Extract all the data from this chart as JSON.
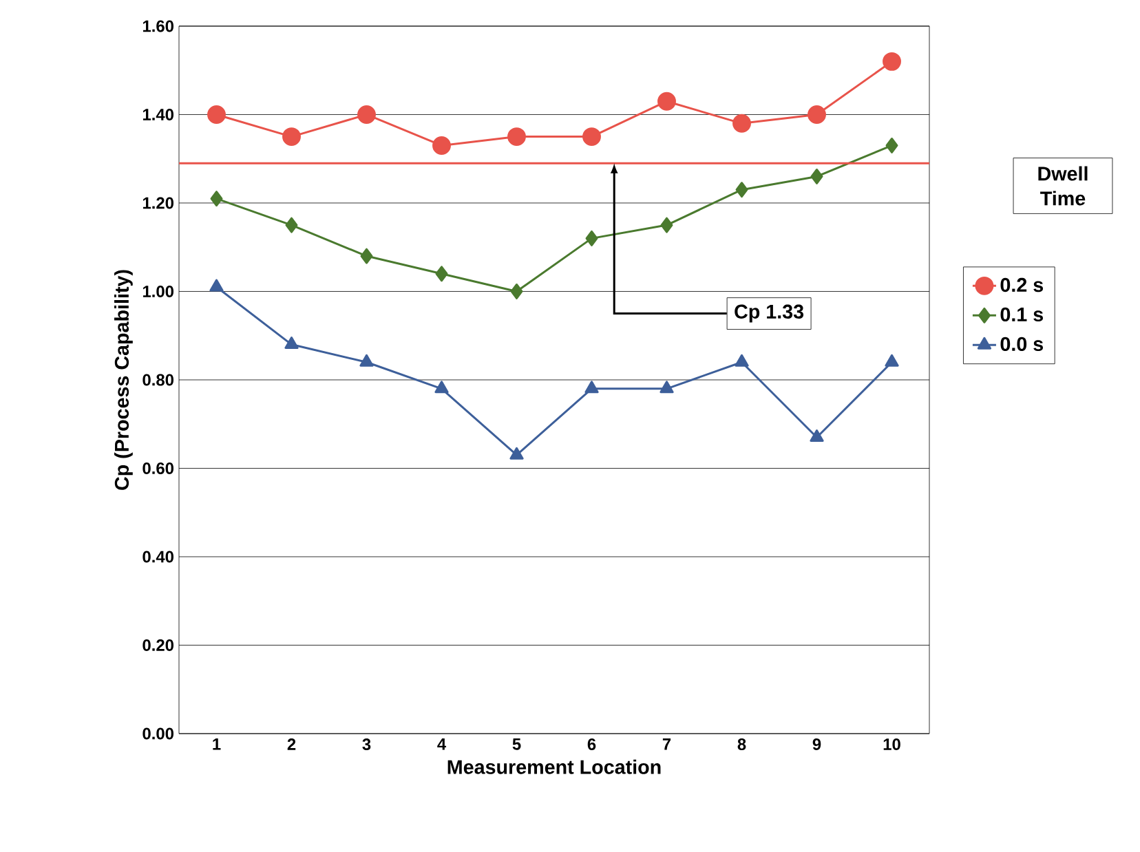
{
  "chart_data": {
    "type": "line",
    "xlabel": "Measurement Location",
    "ylabel": "Cp (Process Capability)",
    "legend_title": "Dwell Time",
    "categories": [
      "1",
      "2",
      "3",
      "4",
      "5",
      "6",
      "7",
      "8",
      "9",
      "10"
    ],
    "series": [
      {
        "name": "0.2 s",
        "color": "#e8534a",
        "marker": "circle",
        "values": [
          1.4,
          1.35,
          1.4,
          1.33,
          1.35,
          1.35,
          1.43,
          1.38,
          1.4,
          1.52
        ]
      },
      {
        "name": "0.1 s",
        "color": "#4a7a2e",
        "marker": "diamond",
        "values": [
          1.21,
          1.15,
          1.08,
          1.04,
          1.0,
          1.12,
          1.15,
          1.23,
          1.26,
          1.33
        ]
      },
      {
        "name": "0.0 s",
        "color": "#3d5f9a",
        "marker": "triangle",
        "values": [
          1.01,
          0.88,
          0.84,
          0.78,
          0.63,
          0.78,
          0.78,
          0.84,
          0.67,
          0.84
        ]
      }
    ],
    "ylim": [
      0,
      1.6
    ],
    "yticks": [
      {
        "value": 0,
        "label": "0.00"
      },
      {
        "value": 0.2,
        "label": "0.20"
      },
      {
        "value": 0.4,
        "label": "0.40"
      },
      {
        "value": 0.6,
        "label": "0.60"
      },
      {
        "value": 0.8,
        "label": "0.80"
      },
      {
        "value": 1.0,
        "label": "1.00"
      },
      {
        "value": 1.2,
        "label": "1.20"
      },
      {
        "value": 1.4,
        "label": "1.40"
      },
      {
        "value": 1.6,
        "label": "1.60"
      }
    ],
    "ref_lines": [
      {
        "axis": "y",
        "value": 1.29,
        "label": "Cp 1.33",
        "color": "#e8534a"
      }
    ],
    "grid": "y",
    "legend": "right"
  }
}
